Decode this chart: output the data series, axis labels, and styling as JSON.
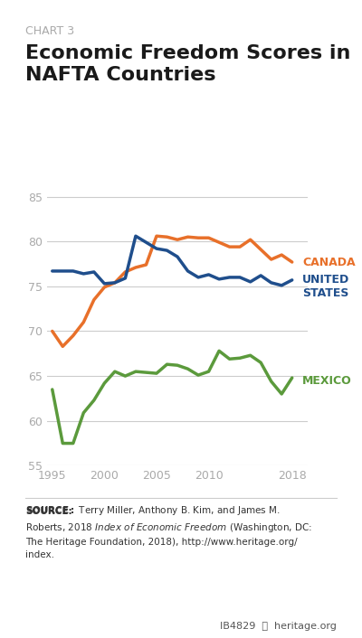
{
  "chart_label": "CHART 3",
  "title": "Economic Freedom Scores in\nNAFTA Countries",
  "canada": {
    "years": [
      1995,
      1996,
      1997,
      1998,
      1999,
      2000,
      2001,
      2002,
      2003,
      2004,
      2005,
      2006,
      2007,
      2008,
      2009,
      2010,
      2011,
      2012,
      2013,
      2014,
      2015,
      2016,
      2017,
      2018
    ],
    "values": [
      70.0,
      68.3,
      69.5,
      71.0,
      73.5,
      74.9,
      75.4,
      76.6,
      77.1,
      77.4,
      80.6,
      80.5,
      80.2,
      80.5,
      80.4,
      80.4,
      79.9,
      79.4,
      79.4,
      80.2,
      79.1,
      78.0,
      78.5,
      77.7
    ],
    "color": "#E8702A",
    "label": "CANADA"
  },
  "usa": {
    "years": [
      1995,
      1996,
      1997,
      1998,
      1999,
      2000,
      2001,
      2002,
      2003,
      2004,
      2005,
      2006,
      2007,
      2008,
      2009,
      2010,
      2011,
      2012,
      2013,
      2014,
      2015,
      2016,
      2017,
      2018
    ],
    "values": [
      76.7,
      76.7,
      76.7,
      76.4,
      76.6,
      75.3,
      75.4,
      75.9,
      80.6,
      79.9,
      79.2,
      79.0,
      78.3,
      76.7,
      76.0,
      76.3,
      75.8,
      76.0,
      76.0,
      75.5,
      76.2,
      75.4,
      75.1,
      75.7
    ],
    "color": "#1F4E8C",
    "label": "UNITED\nSTATES"
  },
  "mexico": {
    "years": [
      1995,
      1996,
      1997,
      1998,
      1999,
      2000,
      2001,
      2002,
      2003,
      2004,
      2005,
      2006,
      2007,
      2008,
      2009,
      2010,
      2011,
      2012,
      2013,
      2014,
      2015,
      2016,
      2017,
      2018
    ],
    "values": [
      63.5,
      57.5,
      57.5,
      60.9,
      62.3,
      64.2,
      65.5,
      65.0,
      65.5,
      65.4,
      65.3,
      66.3,
      66.2,
      65.8,
      65.1,
      65.5,
      67.8,
      66.9,
      67.0,
      67.3,
      66.5,
      64.4,
      63.0,
      64.8
    ],
    "color": "#5B9A3C",
    "label": "MEXICO"
  },
  "ylim": [
    55,
    87
  ],
  "yticks": [
    55,
    60,
    65,
    70,
    75,
    80,
    85
  ],
  "xticks": [
    1995,
    2000,
    2005,
    2010,
    2018
  ],
  "source_text": "SOURCE: Terry Miller, Anthony B. Kim, and James M.\nRoberts, 2018 Index of Economic Freedom (Washington, DC:\nThe Heritage Foundation, 2018), http://www.heritage.org/\nindex.",
  "footer_text": "IB4829    heritage.org",
  "bg_color": "#FFFFFF",
  "grid_color": "#CCCCCC",
  "tick_color": "#AAAAAA",
  "label_fontsize": 9,
  "line_width": 2.5
}
